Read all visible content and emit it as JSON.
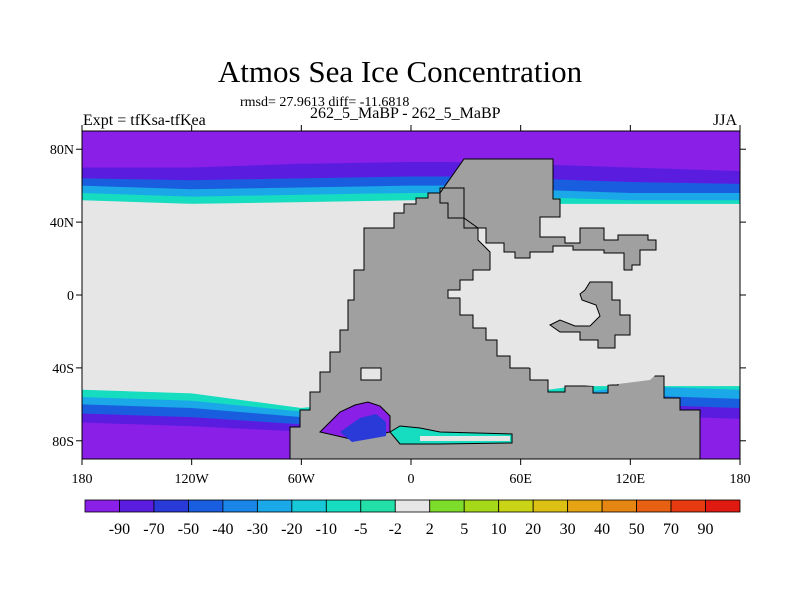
{
  "chart_data": {
    "type": "heatmap",
    "title": "Atmos Sea Ice Concentration",
    "stats_line": "rmsd= 27.9613 diff= -11.6818",
    "subtitle": "262_5_MaBP - 262_5_MaBP",
    "left_label": "Expt = tfKsa-tfKea",
    "right_label": "JJA",
    "xlim": [
      -180,
      180
    ],
    "ylim": [
      -90,
      90
    ],
    "x_ticks": [
      {
        "value": -180,
        "label": "180"
      },
      {
        "value": -120,
        "label": "120W"
      },
      {
        "value": -60,
        "label": "60W"
      },
      {
        "value": 0,
        "label": "0"
      },
      {
        "value": 60,
        "label": "60E"
      },
      {
        "value": 120,
        "label": "120E"
      },
      {
        "value": 180,
        "label": "180"
      }
    ],
    "y_ticks": [
      {
        "value": 80,
        "label": "80N"
      },
      {
        "value": 40,
        "label": "40N"
      },
      {
        "value": 0,
        "label": "0"
      },
      {
        "value": -40,
        "label": "40S"
      },
      {
        "value": -80,
        "label": "80S"
      }
    ],
    "colorbar": {
      "levels": [
        "-90",
        "-70",
        "-50",
        "-40",
        "-30",
        "-20",
        "-10",
        "-5",
        "-2",
        "2",
        "5",
        "10",
        "20",
        "30",
        "40",
        "50",
        "70",
        "90"
      ],
      "colors": [
        "#8a1fe8",
        "#5a1de0",
        "#2a3ad8",
        "#1a5ee0",
        "#1a86e8",
        "#1aa8e8",
        "#16c8d8",
        "#16dcc0",
        "#22e0a8",
        "#e6e6e6",
        "#7edc2a",
        "#a6d81a",
        "#cad416",
        "#dcc014",
        "#e6a414",
        "#e68612",
        "#e86012",
        "#e63a10",
        "#e01a10"
      ]
    },
    "fields": {
      "ocean_neutral": "#e6e6e6",
      "land": "#a0a0a0",
      "coast": "#000000"
    }
  }
}
